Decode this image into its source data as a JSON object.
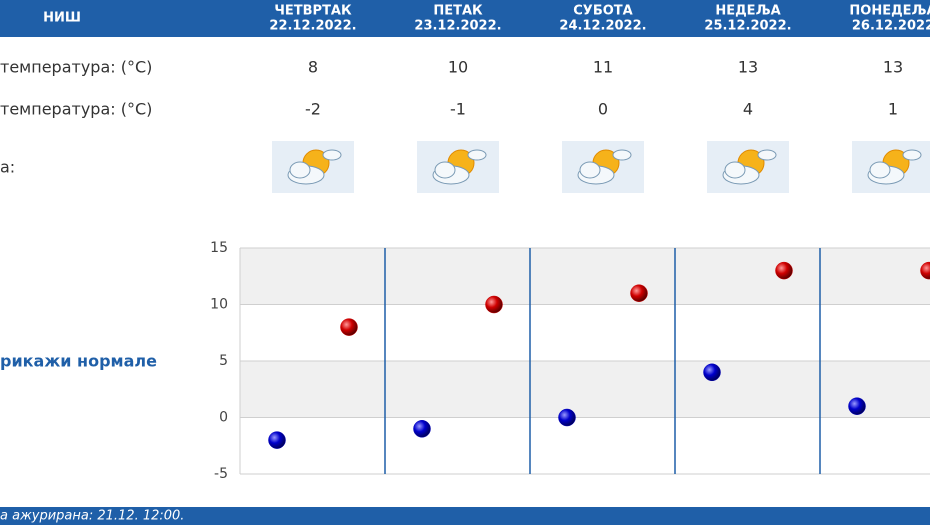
{
  "table": {
    "city": "НИШ",
    "days": [
      {
        "day": "ЧЕТВРТАК",
        "date": "22.12.2022."
      },
      {
        "day": "ПЕТАК",
        "date": "23.12.2022."
      },
      {
        "day": "СУБОТА",
        "date": "24.12.2022."
      },
      {
        "day": "НЕДЕЉА",
        "date": "25.12.2022."
      },
      {
        "day": "ПОНЕДЕЉА",
        "date": "26.12.2022"
      }
    ],
    "icon_row_label": "а:"
  },
  "link": "рикажи нормале",
  "footer": "а ажурирана:  21.12. 12:00.",
  "chart_data": {
    "type": "scatter",
    "series": [
      {
        "name": "температура: (°C)",
        "color": "#cc0000",
        "values": [
          8,
          10,
          11,
          13,
          13
        ]
      },
      {
        "name": "температура: (°C)",
        "color": "#0000bb",
        "values": [
          -2,
          -1,
          0,
          4,
          1
        ]
      }
    ],
    "ylim": [
      -5,
      15
    ],
    "yticks": [
      -5,
      0,
      5,
      10,
      15
    ],
    "grid": true
  }
}
